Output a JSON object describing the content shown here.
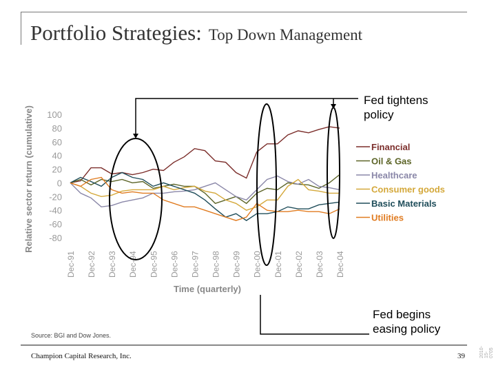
{
  "slide": {
    "title_main": "Portfolio Strategies:",
    "title_sub": "Top Down Management",
    "source": "Source: BGI and Dow Jones.",
    "footer_company": "Champion Capital Research, Inc.",
    "page_number": "39",
    "side_code": "2010-15-0705"
  },
  "annotations": {
    "tighten": "Fed tightens policy",
    "tighten_l1": "Fed tightens",
    "tighten_l2": "policy",
    "ease_l1": "Fed begins",
    "ease_l2": "easing policy"
  },
  "chart_data": {
    "type": "line",
    "title": "",
    "xlabel": "Time (quarterly)",
    "ylabel": "Relative sector return (cumulative)",
    "ylim": [
      -80,
      100
    ],
    "yticks": [
      100,
      80,
      60,
      40,
      20,
      0,
      -20,
      -40,
      -60,
      -80
    ],
    "x_tick_labels": [
      "Dec-91",
      "Dec-92",
      "Dec-93",
      "Dec-94",
      "Dec-95",
      "Dec-96",
      "Dec-97",
      "Dec-98",
      "Dec-99",
      "Dec-00",
      "Dec-01",
      "Dec-02",
      "Dec-03",
      "Dec-04"
    ],
    "x": [
      "Dec-91",
      "Jun-92",
      "Dec-92",
      "Jun-93",
      "Dec-93",
      "Jun-94",
      "Dec-94",
      "Jun-95",
      "Dec-95",
      "Jun-96",
      "Dec-96",
      "Jun-97",
      "Dec-97",
      "Jun-98",
      "Dec-98",
      "Jun-99",
      "Dec-99",
      "Jun-00",
      "Dec-00",
      "Jun-01",
      "Dec-01",
      "Jun-02",
      "Dec-02",
      "Jun-03",
      "Dec-03",
      "Jun-04",
      "Dec-04"
    ],
    "grid": false,
    "legend_position": "right",
    "series": [
      {
        "name": "Financial",
        "color": "#7b2d2a",
        "values": [
          0,
          3,
          22,
          22,
          13,
          15,
          12,
          15,
          20,
          18,
          30,
          38,
          50,
          47,
          32,
          30,
          15,
          7,
          45,
          57,
          57,
          70,
          76,
          73,
          78,
          82,
          80
        ]
      },
      {
        "name": "Oil & Gas",
        "color": "#5c6427",
        "values": [
          0,
          5,
          -3,
          5,
          2,
          5,
          0,
          2,
          -8,
          -5,
          -2,
          -5,
          -5,
          -15,
          -30,
          -25,
          -20,
          -30,
          -15,
          -8,
          -10,
          0,
          -2,
          -3,
          -8,
          0,
          12
        ]
      },
      {
        "name": "Healthcare",
        "color": "#8a87a8",
        "values": [
          0,
          -15,
          -22,
          -35,
          -33,
          -28,
          -25,
          -22,
          -15,
          -15,
          -13,
          -12,
          -10,
          -5,
          0,
          -10,
          -20,
          -25,
          -10,
          5,
          10,
          2,
          -2,
          5,
          -5,
          -7,
          -10
        ]
      },
      {
        "name": "Consumer goods",
        "color": "#d4a83a",
        "values": [
          0,
          -5,
          -15,
          -20,
          -18,
          -12,
          -10,
          -10,
          -10,
          -5,
          -10,
          -7,
          -5,
          -12,
          -15,
          -25,
          -30,
          -40,
          -35,
          -25,
          -25,
          -5,
          5,
          -10,
          -12,
          -15,
          -15
        ]
      },
      {
        "name": "Basic Materials",
        "color": "#1f4d5a",
        "values": [
          0,
          8,
          2,
          -5,
          8,
          15,
          8,
          5,
          -5,
          0,
          -5,
          -10,
          -15,
          -25,
          -38,
          -50,
          -45,
          -55,
          -45,
          -45,
          -42,
          -35,
          -38,
          -38,
          -32,
          -30,
          -28
        ]
      },
      {
        "name": "Utilities",
        "color": "#e07b20",
        "values": [
          0,
          -5,
          5,
          8,
          -10,
          -15,
          -13,
          -15,
          -15,
          -25,
          -30,
          -35,
          -35,
          -40,
          -45,
          -50,
          -55,
          -50,
          -30,
          -40,
          -42,
          -42,
          -40,
          -42,
          -42,
          -45,
          -38
        ]
      }
    ]
  }
}
